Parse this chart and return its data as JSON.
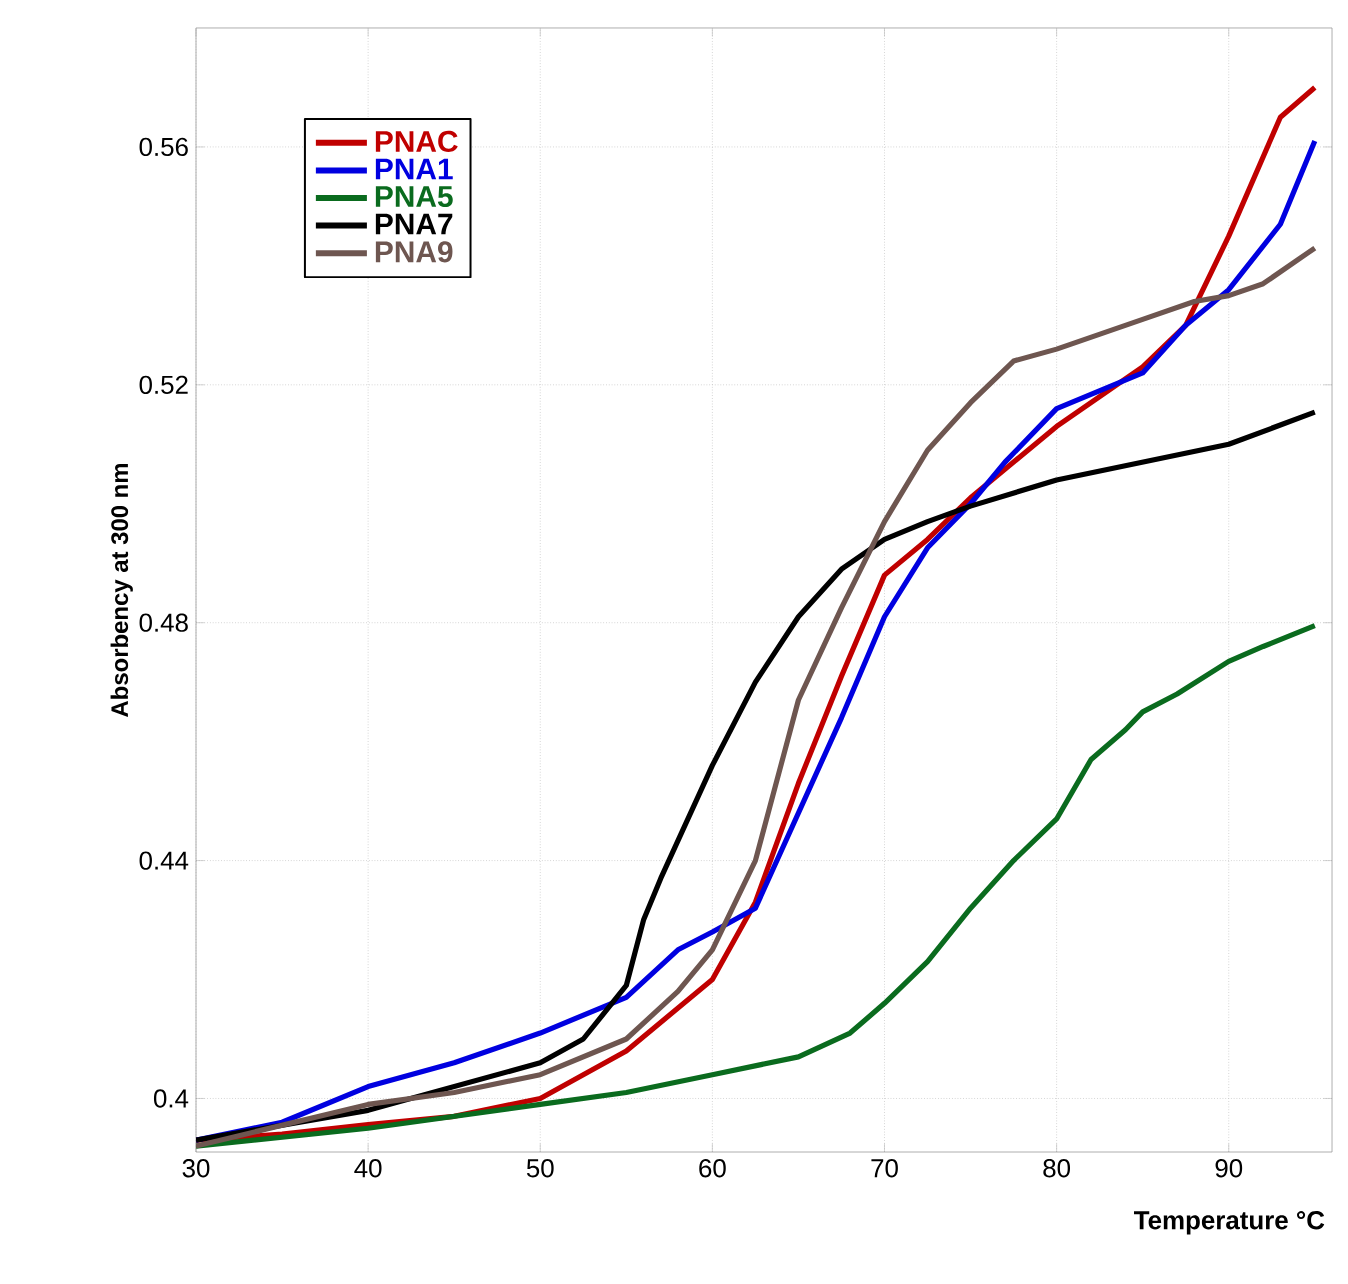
{
  "chart_data": {
    "type": "line",
    "xlabel": "Temperature °C",
    "ylabel": "Absorbency at 300 nm",
    "xlim": [
      30,
      96
    ],
    "ylim": [
      0.391,
      0.58
    ],
    "xticks": [
      30,
      40,
      50,
      60,
      70,
      80,
      90
    ],
    "yticks": [
      0.4,
      0.44,
      0.48,
      0.52,
      0.56
    ],
    "grid": true,
    "legend": "top left",
    "line_style": "solid",
    "marker": "none",
    "series": [
      {
        "name": "PNAC",
        "color": "#c00000",
        "x": [
          30,
          35,
          40,
          45,
          50,
          55,
          60,
          62.5,
          65,
          67.5,
          70,
          72.5,
          75,
          80,
          85,
          87.5,
          90,
          93,
          95
        ],
        "values": [
          0.393,
          0.394,
          0.3956,
          0.397,
          0.4,
          0.408,
          0.42,
          0.433,
          0.453,
          0.471,
          0.488,
          0.494,
          0.501,
          0.513,
          0.523,
          0.53,
          0.545,
          0.565,
          0.57
        ]
      },
      {
        "name": "PNA1",
        "color": "#0000e0",
        "x": [
          30,
          35,
          40,
          45,
          50,
          55,
          58,
          60,
          62.5,
          65,
          67.5,
          70,
          72.5,
          75,
          77,
          80,
          85,
          87.5,
          90,
          93,
          95
        ],
        "values": [
          0.393,
          0.396,
          0.402,
          0.406,
          0.411,
          0.417,
          0.425,
          0.428,
          0.432,
          0.448,
          0.464,
          0.481,
          0.4926,
          0.5,
          0.507,
          0.516,
          0.522,
          0.53,
          0.536,
          0.547,
          0.561
        ]
      },
      {
        "name": "PNA5",
        "color": "#0a6b1e",
        "x": [
          30,
          40,
          50,
          55,
          60,
          65,
          68,
          70,
          72.5,
          75,
          77.5,
          80,
          82,
          84,
          85,
          87,
          90,
          92,
          95
        ],
        "values": [
          0.392,
          0.395,
          0.399,
          0.401,
          0.404,
          0.407,
          0.411,
          0.416,
          0.423,
          0.432,
          0.44,
          0.447,
          0.457,
          0.462,
          0.465,
          0.468,
          0.4735,
          0.476,
          0.4795
        ]
      },
      {
        "name": "PNA7",
        "color": "#000000",
        "x": [
          30,
          40,
          45,
          50,
          52.5,
          55,
          56,
          57,
          60,
          62.5,
          65,
          67.5,
          70,
          72.5,
          75,
          80,
          85,
          90,
          95
        ],
        "values": [
          0.393,
          0.398,
          0.402,
          0.406,
          0.41,
          0.419,
          0.43,
          0.437,
          0.456,
          0.47,
          0.481,
          0.489,
          0.494,
          0.497,
          0.4996,
          0.504,
          0.507,
          0.51,
          0.5154
        ]
      },
      {
        "name": "PNA9",
        "color": "#6e5650",
        "x": [
          30,
          40,
          45,
          50,
          55,
          58,
          60,
          62.5,
          65,
          67.5,
          70,
          72.5,
          75,
          77.5,
          80,
          85,
          88,
          90,
          92,
          95
        ],
        "values": [
          0.392,
          0.399,
          0.401,
          0.404,
          0.41,
          0.418,
          0.425,
          0.44,
          0.467,
          0.4825,
          0.497,
          0.509,
          0.517,
          0.524,
          0.526,
          0.531,
          0.534,
          0.535,
          0.537,
          0.543
        ]
      }
    ]
  }
}
